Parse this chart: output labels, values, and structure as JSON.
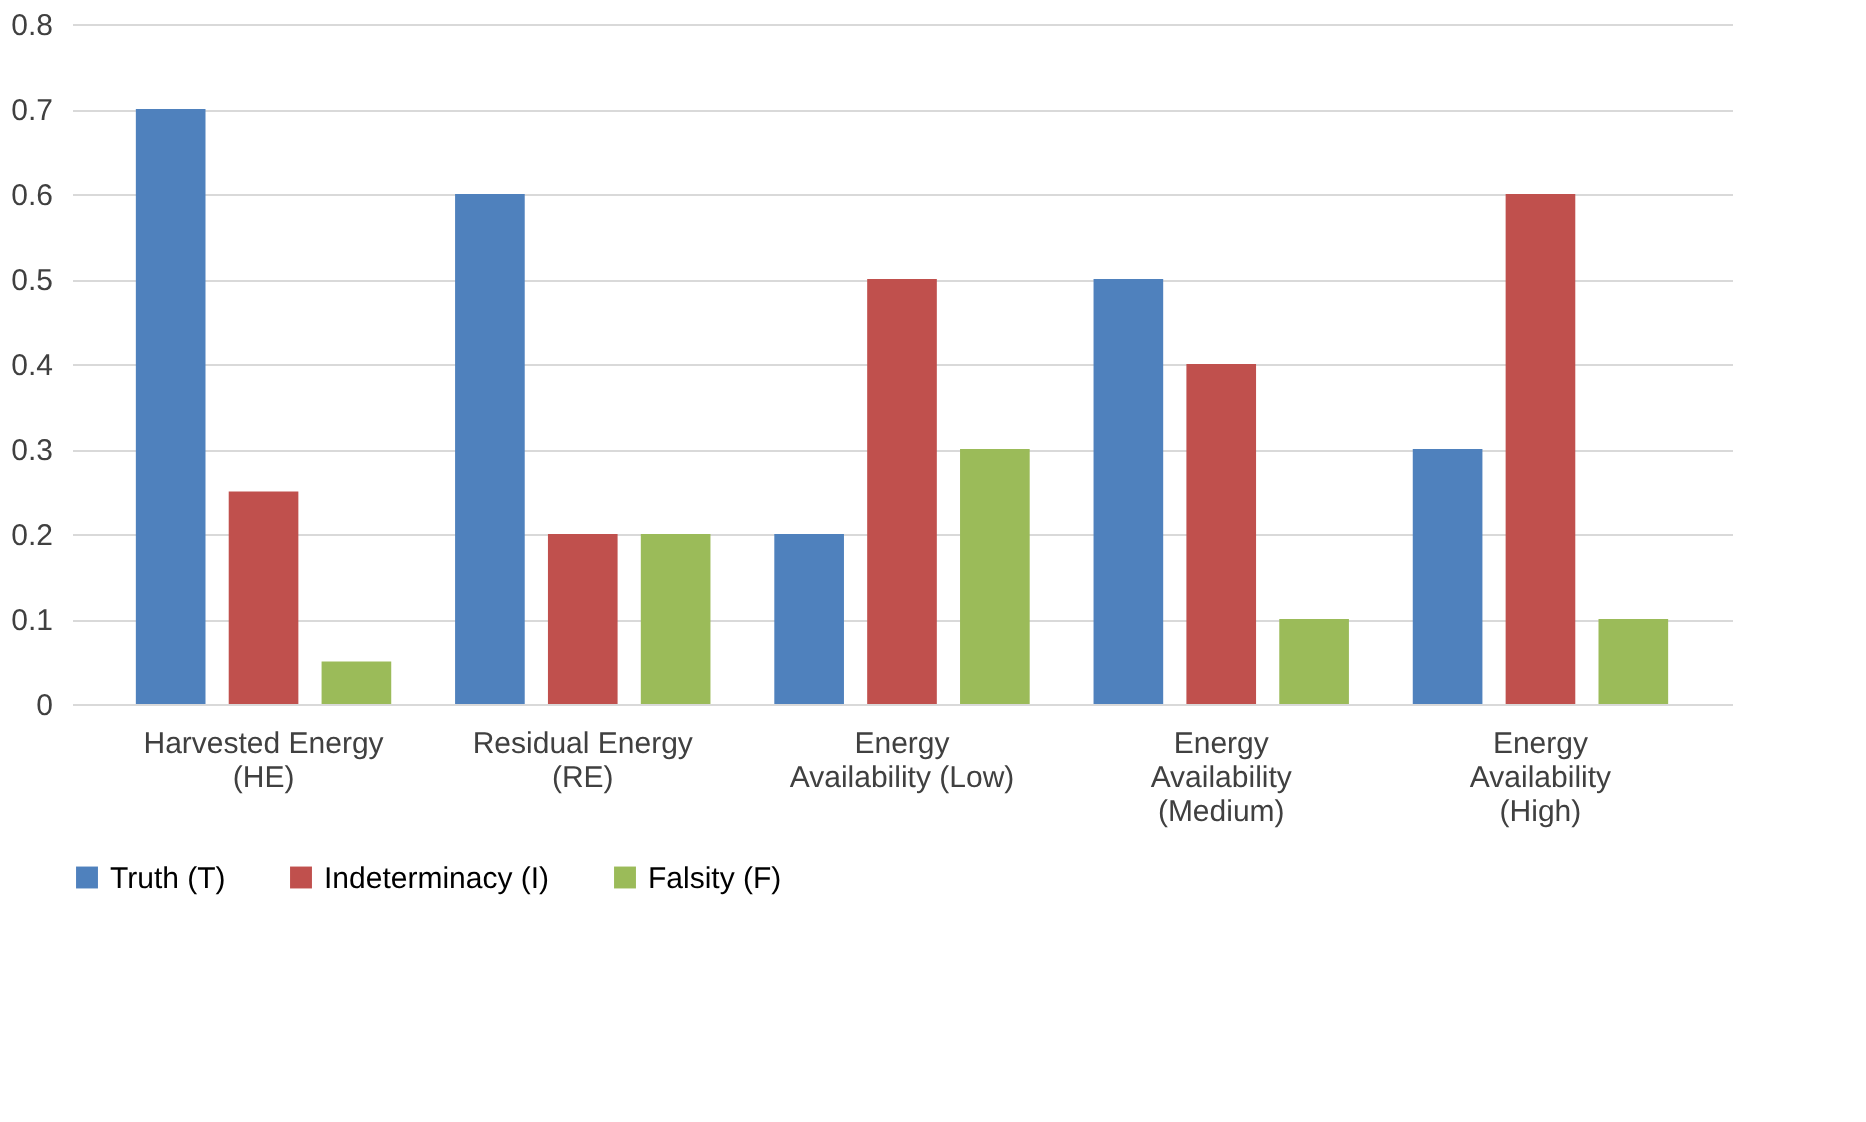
{
  "chart_data": {
    "type": "bar",
    "categories": [
      "Harvested Energy (HE)",
      "Residual Energy (RE)",
      "Energy Availability (Low)",
      "Energy Availability (Medium)",
      "Energy Availability (High)"
    ],
    "series": [
      {
        "name": "Truth (T)",
        "color": "#4f81bd",
        "values": [
          0.7,
          0.6,
          0.2,
          0.5,
          0.3
        ]
      },
      {
        "name": "Indeterminacy (I)",
        "color": "#c0504d",
        "values": [
          0.25,
          0.2,
          0.5,
          0.4,
          0.6
        ]
      },
      {
        "name": "Falsity (F)",
        "color": "#9bbb59",
        "values": [
          0.05,
          0.2,
          0.3,
          0.1,
          0.1
        ]
      }
    ],
    "ylim": [
      0,
      0.8
    ],
    "yticks": [
      0,
      0.1,
      0.2,
      0.3,
      0.4,
      0.5,
      0.6,
      0.7,
      0.8
    ],
    "grid": "y",
    "legend": "bottom"
  }
}
